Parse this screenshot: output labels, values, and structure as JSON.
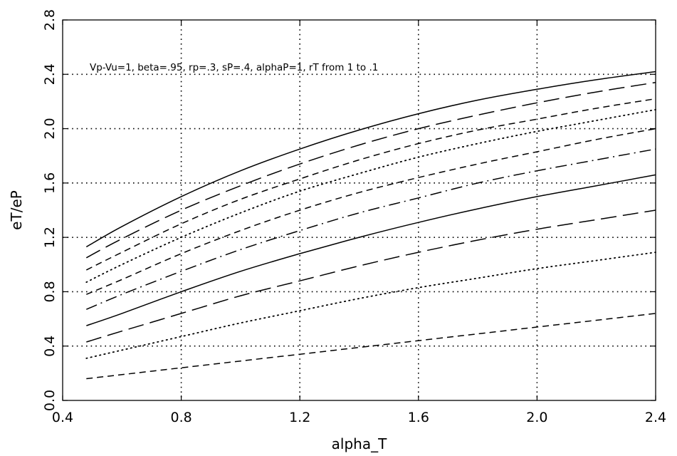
{
  "chart_data": {
    "type": "line",
    "title": "",
    "xlabel": "alpha_T",
    "ylabel": "eT/eP",
    "annotation": "Vp-Vu=1, beta=.95, rp=.3, sP=.4, alphaP=1, rT from 1 to .1",
    "xlim": [
      0.4,
      2.4
    ],
    "ylim": [
      0.0,
      2.8
    ],
    "xticks": [
      "0.4",
      "0.8",
      "1.2",
      "1.6",
      "2.0",
      "2.4"
    ],
    "yticks": [
      "0.0",
      "0.4",
      "0.8",
      "1.2",
      "1.6",
      "2.0",
      "2.4",
      "2.8"
    ],
    "grid": true,
    "x": [
      0.48,
      0.6,
      0.8,
      1.0,
      1.2,
      1.4,
      1.6,
      1.8,
      2.0,
      2.2,
      2.4
    ],
    "series": [
      {
        "style": "solid",
        "values": [
          1.13,
          1.28,
          1.5,
          1.69,
          1.85,
          1.99,
          2.11,
          2.21,
          2.29,
          2.36,
          2.42
        ]
      },
      {
        "style": "long-dash",
        "values": [
          1.05,
          1.19,
          1.4,
          1.58,
          1.74,
          1.88,
          2.0,
          2.1,
          2.19,
          2.27,
          2.34
        ]
      },
      {
        "style": "short-dash",
        "values": [
          0.96,
          1.09,
          1.3,
          1.48,
          1.63,
          1.77,
          1.89,
          1.99,
          2.07,
          2.15,
          2.22
        ]
      },
      {
        "style": "dot",
        "values": [
          0.87,
          1.0,
          1.2,
          1.38,
          1.54,
          1.67,
          1.79,
          1.89,
          1.98,
          2.06,
          2.14
        ]
      },
      {
        "style": "short-dash",
        "values": [
          0.78,
          0.89,
          1.08,
          1.25,
          1.4,
          1.53,
          1.64,
          1.74,
          1.83,
          1.92,
          2.0
        ]
      },
      {
        "style": "dash-dot",
        "values": [
          0.67,
          0.78,
          0.95,
          1.11,
          1.25,
          1.38,
          1.49,
          1.6,
          1.69,
          1.77,
          1.85
        ]
      },
      {
        "style": "solid",
        "values": [
          0.55,
          0.64,
          0.8,
          0.95,
          1.08,
          1.2,
          1.31,
          1.41,
          1.5,
          1.58,
          1.66
        ]
      },
      {
        "style": "long-dash",
        "values": [
          0.43,
          0.51,
          0.64,
          0.77,
          0.88,
          0.99,
          1.09,
          1.18,
          1.26,
          1.33,
          1.4
        ]
      },
      {
        "style": "dot",
        "values": [
          0.31,
          0.37,
          0.47,
          0.57,
          0.66,
          0.75,
          0.83,
          0.9,
          0.97,
          1.03,
          1.09
        ]
      },
      {
        "style": "short-dash",
        "values": [
          0.16,
          0.19,
          0.24,
          0.29,
          0.34,
          0.39,
          0.44,
          0.49,
          0.54,
          0.59,
          0.64
        ]
      }
    ]
  }
}
